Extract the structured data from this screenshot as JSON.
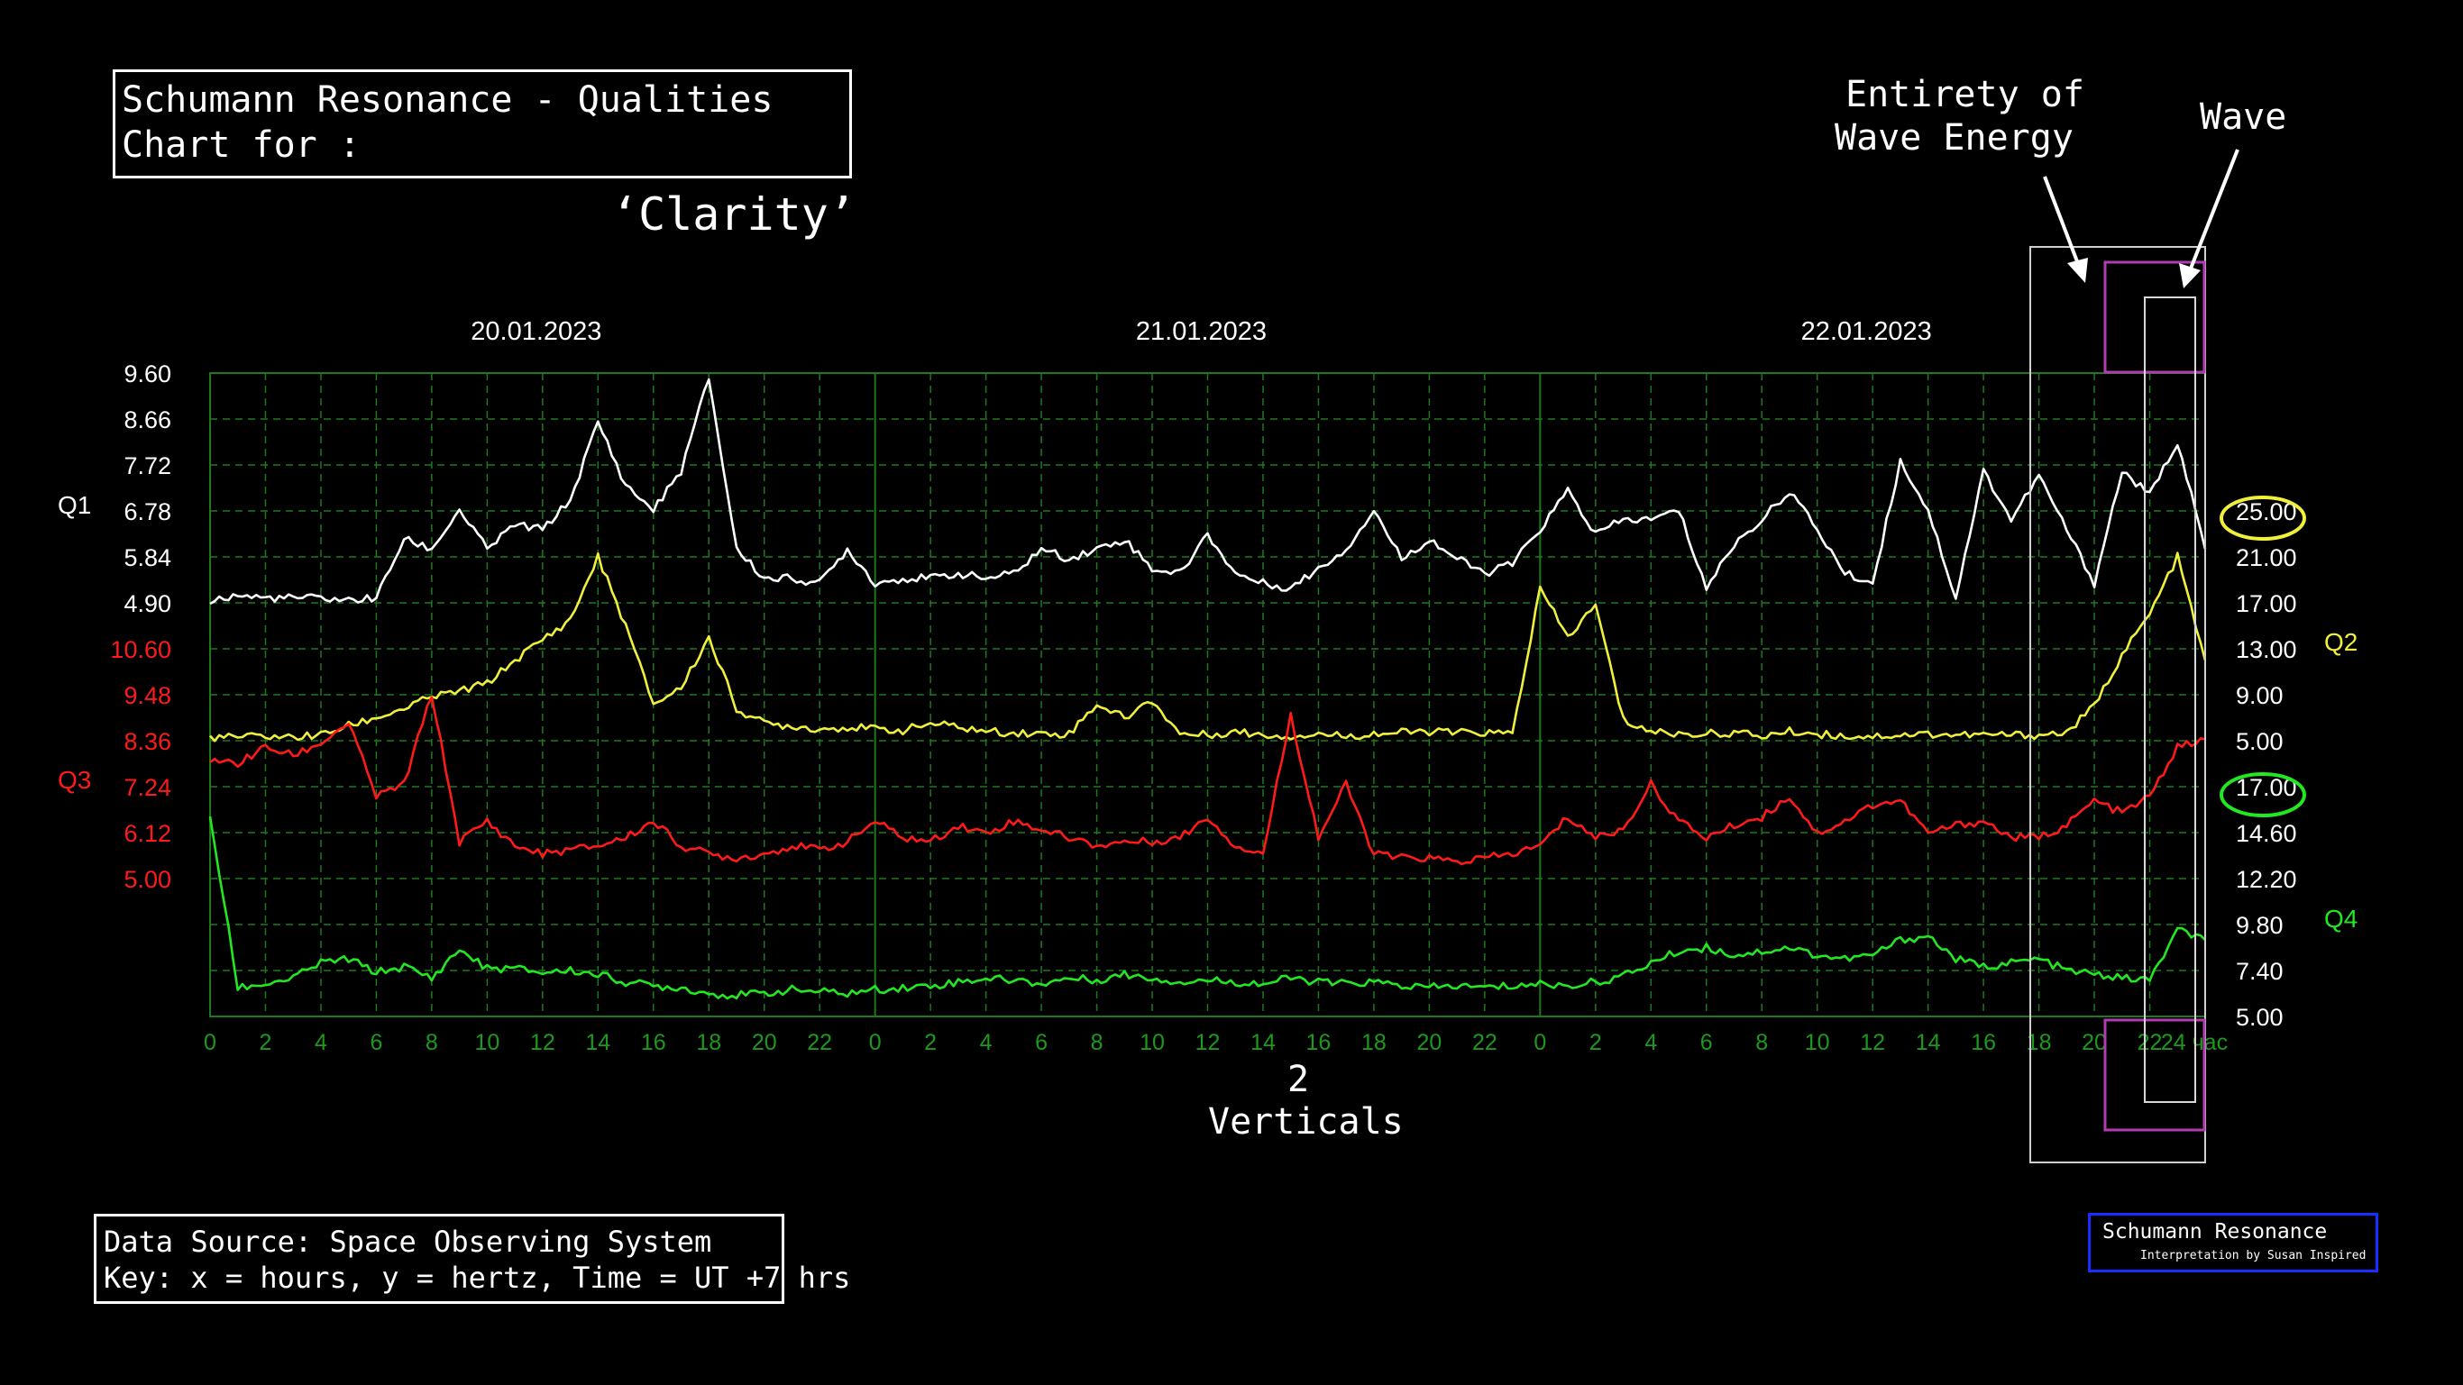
{
  "title": {
    "line1": "Schumann Resonance - Qualities",
    "line2": "Chart for :",
    "subject": "‘Clarity’"
  },
  "annotations": {
    "entirety_line1": "Entirety of",
    "entirety_line2": "Wave Energy",
    "wave": "Wave",
    "verticals_num": "2",
    "verticals": "Verticals"
  },
  "source": {
    "line1": "Data Source: Space Observing System",
    "line2": "Key: x = hours, y = hertz, Time = UT +7 hrs"
  },
  "brand": {
    "title": "Schumann Resonance",
    "sub": "Interpretation by Susan Inspired"
  },
  "colors": {
    "q1": "#ffffff",
    "q2": "#f0f03c",
    "q3": "#ff1a1a",
    "q4": "#22e822",
    "grid": "#1c7a1c",
    "brand_border": "#1a2cff"
  },
  "chart_data": {
    "type": "line",
    "dates": [
      "20.01.2023",
      "21.01.2023",
      "22.01.2023"
    ],
    "x_ticks": [
      "0",
      "2",
      "4",
      "6",
      "8",
      "10",
      "12",
      "14",
      "16",
      "18",
      "20",
      "22",
      "0",
      "2",
      "4",
      "6",
      "8",
      "10",
      "12",
      "14",
      "16",
      "18",
      "20",
      "22",
      "0",
      "2",
      "4",
      "6",
      "8",
      "10",
      "12",
      "14",
      "16",
      "18",
      "20",
      "22",
      "24 час"
    ],
    "x_range_hours": [
      0,
      72
    ],
    "grid": true,
    "axes": {
      "q1": {
        "label": "Q1",
        "ticks": [
          "9.60",
          "8.66",
          "7.72",
          "6.78",
          "5.84",
          "4.90"
        ]
      },
      "q3": {
        "label": "Q3",
        "ticks": [
          "10.60",
          "9.48",
          "8.36",
          "7.24",
          "6.12",
          "5.00"
        ]
      },
      "q2": {
        "label": "Q2",
        "ticks": [
          "25.00",
          "21.00",
          "17.00",
          "13.00",
          "9.00",
          "5.00"
        ]
      },
      "q4": {
        "label": "Q4",
        "ticks": [
          "17.00",
          "14.60",
          "12.20",
          "9.80",
          "7.40",
          "5.00"
        ]
      }
    },
    "highlighted_ticks": {
      "q2": "25.00",
      "q4": "17.00"
    },
    "series": [
      {
        "name": "Q1",
        "axis": "q1",
        "y_range": [
          4.9,
          9.6
        ],
        "x": [
          0,
          1,
          2,
          3,
          4,
          5,
          6,
          7,
          8,
          9,
          10,
          11,
          12,
          13,
          14,
          15,
          16,
          17,
          18,
          19,
          20,
          21,
          22,
          23,
          24,
          25,
          26,
          27,
          28,
          29,
          30,
          31,
          32,
          33,
          34,
          35,
          36,
          37,
          38,
          39,
          40,
          41,
          42,
          43,
          44,
          45,
          46,
          47,
          48,
          49,
          50,
          51,
          52,
          53,
          54,
          55,
          56,
          57,
          58,
          59,
          60,
          61,
          62,
          63,
          64,
          65,
          66,
          67,
          68,
          69,
          70,
          71,
          72
        ],
        "values": [
          4.95,
          5.05,
          5.0,
          5.0,
          5.0,
          4.95,
          5.0,
          6.2,
          6.0,
          6.8,
          6.0,
          6.5,
          6.4,
          7.0,
          8.6,
          7.3,
          6.8,
          7.6,
          9.5,
          6.0,
          5.4,
          5.4,
          5.3,
          6.0,
          5.3,
          5.4,
          5.4,
          5.5,
          5.4,
          5.5,
          6.0,
          5.8,
          6.0,
          6.2,
          5.6,
          5.5,
          6.3,
          5.5,
          5.3,
          5.2,
          5.6,
          6.0,
          6.8,
          5.8,
          6.2,
          5.8,
          5.5,
          5.7,
          6.4,
          7.2,
          6.3,
          6.6,
          6.6,
          6.8,
          5.2,
          6.1,
          6.6,
          7.2,
          6.4,
          5.5,
          5.3,
          7.8,
          6.8,
          5.0,
          7.6,
          6.6,
          7.5,
          6.4,
          5.3,
          7.6,
          7.1,
          8.2,
          6.0
        ]
      },
      {
        "name": "Q2",
        "axis": "q2",
        "y_range": [
          5.0,
          25.0
        ],
        "x": [
          0,
          1,
          2,
          3,
          4,
          5,
          6,
          7,
          8,
          9,
          10,
          11,
          12,
          13,
          14,
          15,
          16,
          17,
          18,
          19,
          20,
          21,
          22,
          23,
          24,
          25,
          26,
          27,
          28,
          29,
          30,
          31,
          32,
          33,
          34,
          35,
          36,
          37,
          38,
          39,
          40,
          41,
          42,
          43,
          44,
          45,
          46,
          47,
          48,
          49,
          50,
          51,
          52,
          53,
          54,
          55,
          56,
          57,
          58,
          59,
          60,
          61,
          62,
          63,
          64,
          65,
          66,
          67,
          68,
          69,
          70,
          71,
          72
        ],
        "values": [
          5.3,
          5.3,
          5.4,
          5.3,
          5.5,
          6.3,
          7.0,
          7.8,
          8.8,
          9.3,
          10.0,
          12.0,
          13.8,
          15.5,
          21.0,
          15.0,
          8.2,
          9.6,
          14.0,
          7.8,
          6.5,
          6.3,
          6.0,
          6.2,
          6.0,
          5.9,
          6.5,
          6.2,
          5.8,
          5.7,
          5.6,
          5.6,
          8.2,
          7.0,
          8.5,
          5.6,
          5.5,
          5.8,
          5.5,
          5.4,
          5.6,
          5.4,
          5.6,
          5.7,
          5.8,
          5.7,
          5.7,
          5.6,
          18.2,
          14.0,
          16.8,
          6.8,
          5.8,
          5.6,
          5.6,
          5.7,
          5.4,
          5.8,
          5.6,
          5.4,
          5.4,
          5.5,
          5.6,
          5.5,
          5.5,
          5.5,
          5.5,
          5.7,
          8.0,
          12.5,
          16.0,
          21.0,
          12.0
        ]
      },
      {
        "name": "Q3",
        "axis": "q3",
        "y_range": [
          5.0,
          10.6
        ],
        "x": [
          0,
          1,
          2,
          3,
          4,
          5,
          6,
          7,
          8,
          9,
          10,
          11,
          12,
          13,
          14,
          15,
          16,
          17,
          18,
          19,
          20,
          21,
          22,
          23,
          24,
          25,
          26,
          27,
          28,
          29,
          30,
          31,
          32,
          33,
          34,
          35,
          36,
          37,
          38,
          39,
          40,
          41,
          42,
          43,
          44,
          45,
          46,
          47,
          48,
          49,
          50,
          51,
          52,
          53,
          54,
          55,
          56,
          57,
          58,
          59,
          60,
          61,
          62,
          63,
          64,
          65,
          66,
          67,
          68,
          69,
          70,
          71,
          72
        ],
        "values": [
          7.9,
          7.8,
          8.2,
          8.0,
          8.3,
          8.8,
          7.0,
          7.3,
          9.5,
          5.9,
          6.4,
          5.8,
          5.6,
          5.7,
          5.8,
          6.0,
          6.4,
          5.8,
          5.6,
          5.5,
          5.6,
          5.8,
          5.7,
          5.9,
          6.4,
          6.0,
          5.9,
          6.3,
          6.1,
          6.4,
          6.2,
          6.0,
          5.8,
          5.9,
          5.9,
          6.0,
          6.5,
          5.8,
          5.6,
          9.0,
          6.0,
          7.3,
          5.6,
          5.5,
          5.5,
          5.4,
          5.5,
          5.6,
          5.8,
          6.5,
          6.0,
          6.2,
          7.3,
          6.4,
          6.0,
          6.3,
          6.5,
          7.0,
          6.1,
          6.4,
          6.8,
          6.9,
          6.1,
          6.3,
          6.4,
          6.0,
          6.0,
          6.3,
          6.9,
          6.6,
          7.0,
          8.2,
          8.4
        ]
      },
      {
        "name": "Q4",
        "axis": "q4",
        "y_range": [
          5.0,
          17.0
        ],
        "x": [
          0,
          1,
          2,
          3,
          4,
          5,
          6,
          7,
          8,
          9,
          10,
          11,
          12,
          13,
          14,
          15,
          16,
          17,
          18,
          19,
          20,
          21,
          22,
          23,
          24,
          25,
          26,
          27,
          28,
          29,
          30,
          31,
          32,
          33,
          34,
          35,
          36,
          37,
          38,
          39,
          40,
          41,
          42,
          43,
          44,
          45,
          46,
          47,
          48,
          49,
          50,
          51,
          52,
          53,
          54,
          55,
          56,
          57,
          58,
          59,
          60,
          61,
          62,
          63,
          64,
          65,
          66,
          67,
          68,
          69,
          70,
          71,
          72
        ],
        "values": [
          15.5,
          6.5,
          6.7,
          7.0,
          7.8,
          8.0,
          7.3,
          7.6,
          7.0,
          8.5,
          7.5,
          7.5,
          7.3,
          7.4,
          7.2,
          6.8,
          6.6,
          6.5,
          6.2,
          6.1,
          6.2,
          6.4,
          6.3,
          6.2,
          6.4,
          6.5,
          6.6,
          6.8,
          7.0,
          6.9,
          6.7,
          7.0,
          6.9,
          7.2,
          7.0,
          6.8,
          6.9,
          6.8,
          6.7,
          7.0,
          6.8,
          6.7,
          6.8,
          6.6,
          6.5,
          6.6,
          6.5,
          6.6,
          6.7,
          6.6,
          6.8,
          7.1,
          7.8,
          8.4,
          8.6,
          8.2,
          8.4,
          8.6,
          8.2,
          8.0,
          8.2,
          9.0,
          9.2,
          8.0,
          7.6,
          7.8,
          8.0,
          7.4,
          7.2,
          7.0,
          6.9,
          9.5,
          9.0
        ]
      }
    ]
  }
}
